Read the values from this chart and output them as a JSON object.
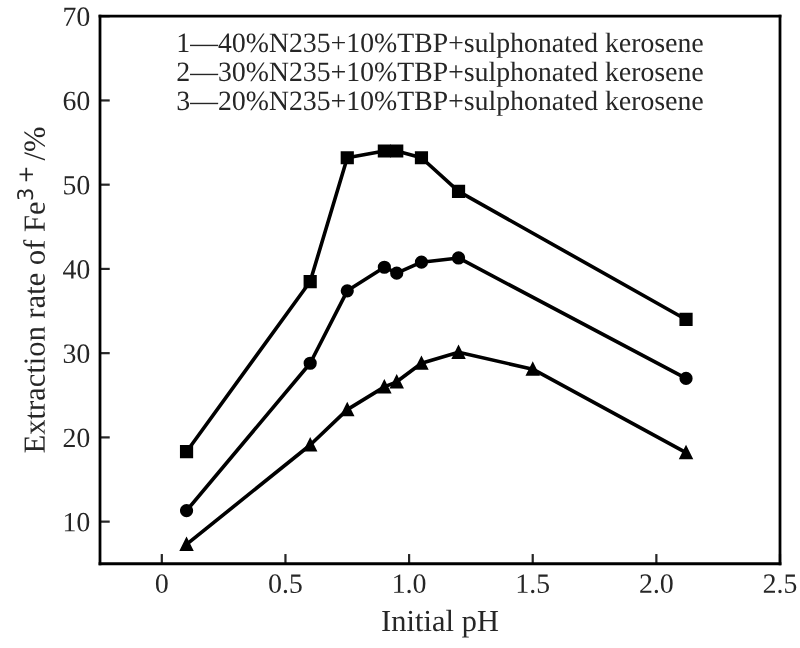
{
  "chart_data": {
    "type": "line",
    "xlabel": "Initial pH",
    "ylabel": "Extraction rate of Fe$^{3+}$/%",
    "xlim": [
      -0.25,
      2.5
    ],
    "xticks": [
      {
        "value": 0,
        "label": "0"
      },
      0.5,
      {
        "value": 1,
        "label": "1.0"
      },
      1.5,
      {
        "value": 2,
        "label": "2.0"
      },
      2.5
    ],
    "ylim": [
      5,
      70
    ],
    "yticks": [
      10,
      20,
      30,
      40,
      50,
      60,
      70
    ],
    "grid": false,
    "line_style": "solid",
    "annotations": [
      "1—40%N235+10%TBP+sulphonated kerosene",
      "2—30%N235+10%TBP+sulphonated kerosene",
      "3—20%N235+10%TBP+sulphonated kerosene"
    ],
    "series": [
      {
        "color": "#000000",
        "marker": "square",
        "x": [
          0.1,
          0.6,
          0.75,
          0.9,
          0.95,
          1.05,
          1.2,
          2.12
        ],
        "values": [
          18.3,
          38.5,
          53.2,
          54.0,
          54.0,
          53.2,
          49.2,
          34.0
        ]
      },
      {
        "color": "#000000",
        "marker": "circle",
        "x": [
          0.1,
          0.6,
          0.75,
          0.9,
          0.95,
          1.05,
          1.2,
          2.12
        ],
        "values": [
          11.3,
          28.8,
          37.4,
          40.2,
          39.5,
          40.8,
          41.3,
          27.0
        ]
      },
      {
        "color": "#000000",
        "marker": "triangle",
        "x": [
          0.1,
          0.6,
          0.75,
          0.9,
          0.95,
          1.05,
          1.2,
          1.5,
          2.12
        ],
        "values": [
          7.3,
          19.1,
          23.3,
          26.0,
          26.6,
          28.8,
          30.1,
          28.1,
          18.2
        ]
      }
    ]
  }
}
